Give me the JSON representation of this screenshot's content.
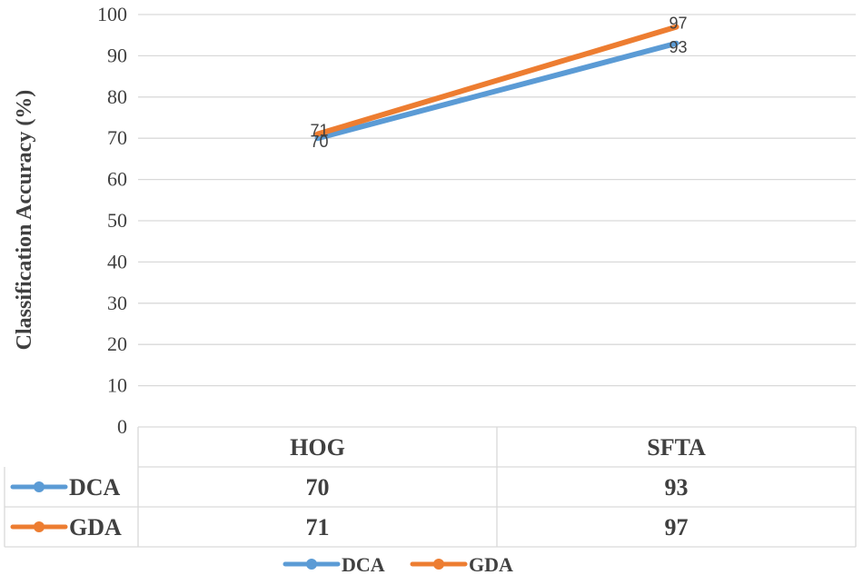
{
  "chart_data": {
    "type": "line",
    "ylabel": "Classification Accuracy (%)",
    "xlabel": "",
    "ylim": [
      0,
      100
    ],
    "yticks": [
      0,
      10,
      20,
      30,
      40,
      50,
      60,
      70,
      80,
      90,
      100
    ],
    "categories": [
      "HOG",
      "SFTA"
    ],
    "series": [
      {
        "name": "DCA",
        "values": [
          70,
          93
        ],
        "color": "#5B9BD5"
      },
      {
        "name": "GDA",
        "values": [
          71,
          97
        ],
        "color": "#ED7D31"
      }
    ],
    "grid": true,
    "legend_position": "bottom",
    "data_table": true
  },
  "colors": {
    "gridline": "#D9D9D9",
    "text": "#404040"
  }
}
